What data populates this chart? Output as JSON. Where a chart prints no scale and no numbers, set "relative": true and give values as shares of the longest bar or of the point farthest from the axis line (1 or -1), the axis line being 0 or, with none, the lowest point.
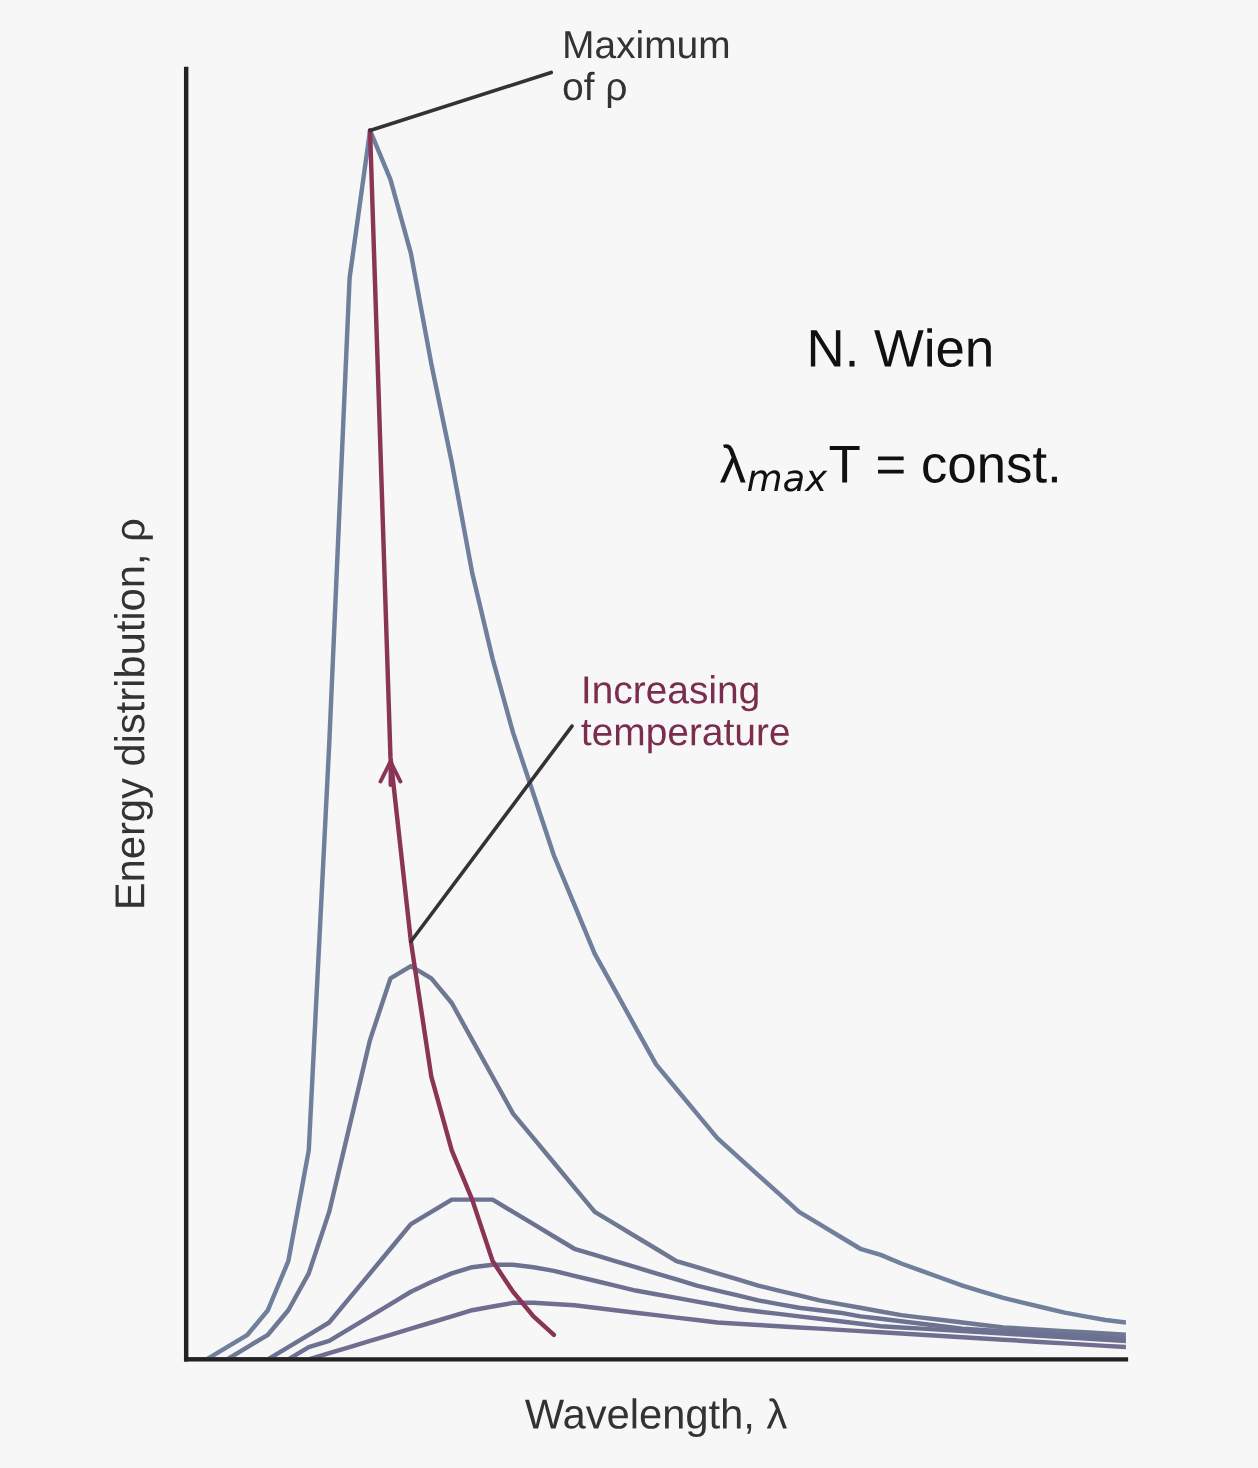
{
  "chart_data": {
    "type": "line",
    "relative": true,
    "xlabel": "Wavelength, λ",
    "ylabel": "Energy distribution, ρ",
    "categories": [
      null,
      null,
      null,
      null,
      null,
      null,
      null,
      null,
      null,
      null,
      null,
      null,
      null,
      null,
      null,
      null,
      null,
      null,
      null,
      null,
      null,
      null,
      null,
      null,
      null,
      null,
      null,
      null,
      null,
      null,
      null,
      null,
      null,
      null,
      null,
      null,
      null,
      null,
      null,
      null,
      null,
      null,
      null,
      null,
      null,
      null,
      null
    ],
    "series": [
      {
        "color": "#6f7f9c",
        "values": [
          0,
          0,
          0.01,
          0.02,
          0.04,
          0.08,
          0.17,
          0.5,
          0.88,
          1.0,
          0.96,
          0.9,
          0.81,
          0.73,
          0.64,
          0.57,
          0.51,
          0.46,
          0.41,
          0.37,
          0.33,
          0.3,
          0.27,
          0.24,
          0.22,
          0.2,
          0.18,
          0.165,
          0.15,
          0.135,
          0.12,
          0.11,
          0.1,
          0.09,
          0.085,
          0.078,
          0.072,
          0.066,
          0.06,
          0.055,
          0.05,
          0.046,
          0.042,
          0.038,
          0.035,
          0.032,
          0.03
        ]
      },
      {
        "color": "#6f7893",
        "values": [
          0,
          0,
          0,
          0.01,
          0.02,
          0.04,
          0.07,
          0.12,
          0.19,
          0.26,
          0.31,
          0.32,
          0.31,
          0.29,
          0.26,
          0.23,
          0.2,
          0.18,
          0.16,
          0.14,
          0.12,
          0.11,
          0.1,
          0.09,
          0.08,
          0.075,
          0.07,
          0.065,
          0.06,
          0.056,
          0.052,
          0.048,
          0.045,
          0.042,
          0.039,
          0.036,
          0.034,
          0.032,
          0.03,
          0.028,
          0.026,
          0.025,
          0.024,
          0.023,
          0.022,
          0.021,
          0.02
        ]
      },
      {
        "color": "#6c7392",
        "values": [
          0,
          0,
          0,
          0,
          0,
          0.01,
          0.02,
          0.03,
          0.05,
          0.07,
          0.09,
          0.11,
          0.12,
          0.13,
          0.13,
          0.13,
          0.12,
          0.11,
          0.1,
          0.09,
          0.085,
          0.08,
          0.075,
          0.07,
          0.065,
          0.06,
          0.056,
          0.052,
          0.048,
          0.045,
          0.042,
          0.04,
          0.038,
          0.035,
          0.033,
          0.031,
          0.029,
          0.027,
          0.025,
          0.024,
          0.023,
          0.022,
          0.021,
          0.02,
          0.019,
          0.018,
          0.017
        ]
      },
      {
        "color": "#6e7092",
        "values": [
          0,
          0,
          0,
          0,
          0,
          0,
          0.01,
          0.015,
          0.025,
          0.035,
          0.045,
          0.055,
          0.063,
          0.07,
          0.075,
          0.077,
          0.077,
          0.075,
          0.072,
          0.068,
          0.064,
          0.06,
          0.056,
          0.053,
          0.05,
          0.047,
          0.044,
          0.041,
          0.039,
          0.037,
          0.035,
          0.033,
          0.031,
          0.029,
          0.027,
          0.026,
          0.025,
          0.024,
          0.023,
          0.022,
          0.021,
          0.02,
          0.019,
          0.018,
          0.017,
          0.016,
          0.015
        ]
      },
      {
        "color": "#706e90",
        "values": [
          0,
          0,
          0,
          0,
          0,
          0,
          0,
          0.005,
          0.01,
          0.015,
          0.02,
          0.025,
          0.03,
          0.035,
          0.04,
          0.043,
          0.046,
          0.046,
          0.045,
          0.044,
          0.042,
          0.04,
          0.038,
          0.036,
          0.034,
          0.032,
          0.03,
          0.029,
          0.028,
          0.027,
          0.026,
          0.025,
          0.024,
          0.023,
          0.022,
          0.021,
          0.02,
          0.019,
          0.018,
          0.017,
          0.016,
          0.015,
          0.014,
          0.013,
          0.012,
          0.011,
          0.01
        ]
      },
      {
        "color": "#8a3556",
        "values": [
          null,
          null,
          null,
          null,
          null,
          null,
          null,
          null,
          null,
          1.0,
          0.49,
          0.34,
          0.23,
          0.17,
          0.13,
          0.08,
          0.055,
          0.035,
          0.02,
          null,
          null,
          null,
          null,
          null,
          null,
          null,
          null,
          null,
          null,
          null,
          null,
          null,
          null,
          null,
          null,
          null,
          null,
          null,
          null,
          null,
          null,
          null,
          null,
          null,
          null,
          null,
          null
        ]
      }
    ],
    "annotations": [
      "Maximum\nof ρ",
      "Increasing\ntemperature",
      "N. Wien",
      "λ$_{max}$T = const."
    ]
  }
}
